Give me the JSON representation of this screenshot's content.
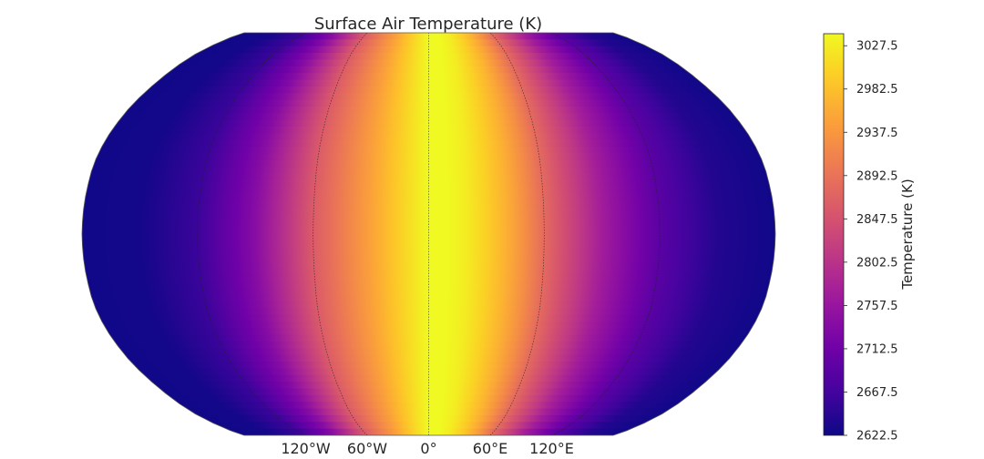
{
  "chart_data": {
    "type": "heatmap",
    "projection": "robinson",
    "title": "Surface Air Temperature (K)",
    "colormap": "plasma",
    "colormap_stops": [
      "#0d0887",
      "#46039f",
      "#7201a8",
      "#9c179e",
      "#bd3786",
      "#d8576b",
      "#ed7953",
      "#fb9f3a",
      "#fdca26",
      "#f0f921"
    ],
    "field": {
      "description_of_variation": "varies with longitude only",
      "peak_longitude_deg": 0,
      "longitude_profile": [
        {
          "lon": -180,
          "value": 2625
        },
        {
          "lon": -150,
          "value": 2628
        },
        {
          "lon": -120,
          "value": 2660
        },
        {
          "lon": -90,
          "value": 2740
        },
        {
          "lon": -60,
          "value": 2860
        },
        {
          "lon": -30,
          "value": 2950
        },
        {
          "lon": -15,
          "value": 3000
        },
        {
          "lon": 0,
          "value": 3040
        },
        {
          "lon": 15,
          "value": 3040
        },
        {
          "lon": 30,
          "value": 3000
        },
        {
          "lon": 45,
          "value": 2950
        },
        {
          "lon": 60,
          "value": 2880
        },
        {
          "lon": 90,
          "value": 2770
        },
        {
          "lon": 120,
          "value": 2690
        },
        {
          "lon": 150,
          "value": 2640
        },
        {
          "lon": 180,
          "value": 2625
        }
      ]
    },
    "meridians_deg": [
      -120,
      -60,
      0,
      60,
      120
    ],
    "longitude_tick_labels": [
      "120°W",
      "60°W",
      "0°",
      "60°E",
      "120°E"
    ],
    "colorbar": {
      "label": "Temperature (K)",
      "vmin": 2622.5,
      "vmax": 3040,
      "ticks": [
        2622.5,
        2667.5,
        2712.5,
        2757.5,
        2802.5,
        2847.5,
        2892.5,
        2937.5,
        2982.5,
        3027.5
      ],
      "tick_labels": [
        "2622.5",
        "2667.5",
        "2712.5",
        "2757.5",
        "2802.5",
        "2847.5",
        "2892.5",
        "2937.5",
        "2982.5",
        "3027.5"
      ]
    }
  }
}
